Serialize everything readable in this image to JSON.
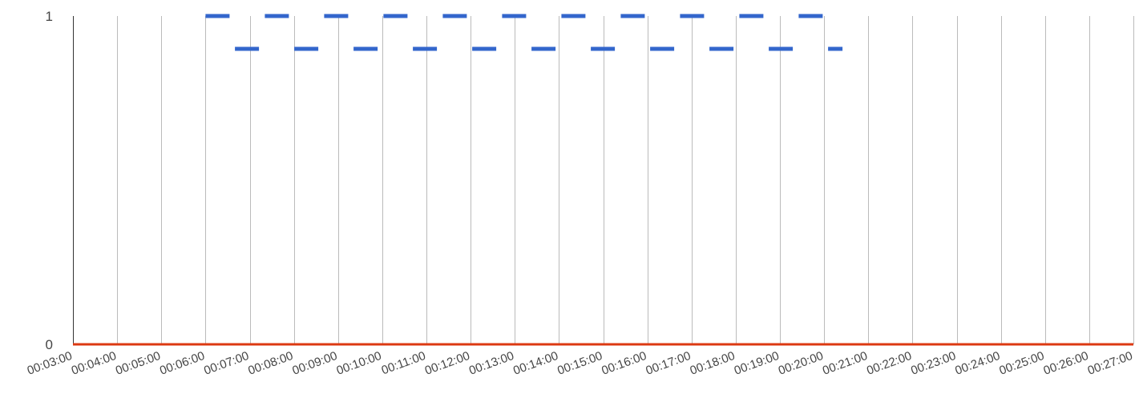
{
  "chart_data": {
    "type": "line",
    "title": "",
    "xlabel": "",
    "ylabel": "",
    "categories": [
      "00:03:00",
      "00:04:00",
      "00:05:00",
      "00:06:00",
      "00:07:00",
      "00:08:00",
      "00:09:00",
      "00:10:00",
      "00:11:00",
      "00:12:00",
      "00:13:00",
      "00:14:00",
      "00:15:00",
      "00:16:00",
      "00:17:00",
      "00:18:00",
      "00:19:00",
      "00:20:00",
      "00:21:00",
      "00:22:00",
      "00:23:00",
      "00:24:00",
      "00:25:00",
      "00:26:00",
      "00:27:00"
    ],
    "ylim": [
      0,
      1
    ],
    "yticks": [
      "0",
      "1"
    ],
    "grid": "vertical",
    "series": [
      {
        "style": "dashed",
        "color": "#3366cc",
        "x": [
          "00:06:00",
          "00:20:00"
        ],
        "values": [
          1,
          1
        ]
      },
      {
        "style": "dashed",
        "color": "#3366cc",
        "x": [
          "00:06:40",
          "00:20:25"
        ],
        "values": [
          0.9,
          0.9
        ]
      },
      {
        "style": "solid",
        "color": "#dc3912",
        "x": [
          "00:03:00",
          "00:27:00"
        ],
        "values": [
          0,
          0
        ]
      }
    ]
  }
}
